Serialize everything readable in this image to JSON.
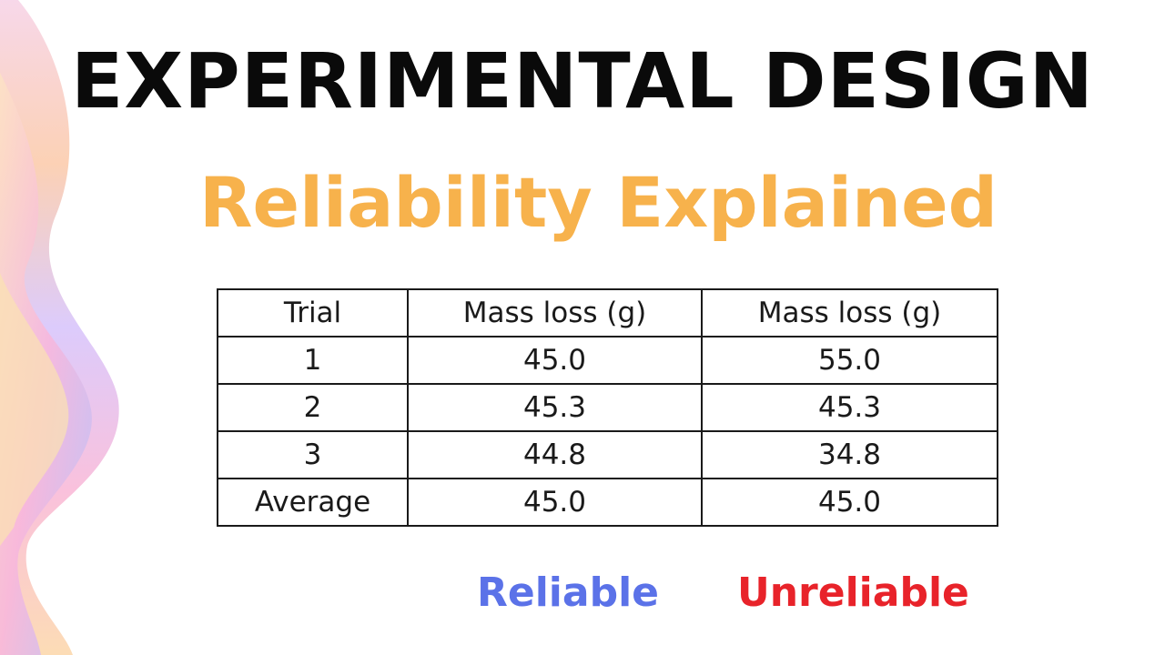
{
  "title": "EXPERIMENTAL DESIGN",
  "subtitle": "Reliability Explained",
  "table_left": {
    "headers": [
      "Trial",
      "Mass loss (g)"
    ],
    "rows": [
      [
        "1",
        "45.0"
      ],
      [
        "2",
        "45.3"
      ],
      [
        "3",
        "44.8"
      ],
      [
        "Average",
        "45.0"
      ]
    ]
  },
  "table_right": {
    "header": "Mass loss (g)",
    "rows": [
      "55.0",
      "45.3",
      "34.8",
      "45.0"
    ]
  },
  "labels": {
    "reliable": "Reliable",
    "unreliable": "Unreliable"
  },
  "colors": {
    "subtitle": "#f7b24c",
    "reliable": "#5b72e8",
    "unreliable": "#e8232a"
  }
}
